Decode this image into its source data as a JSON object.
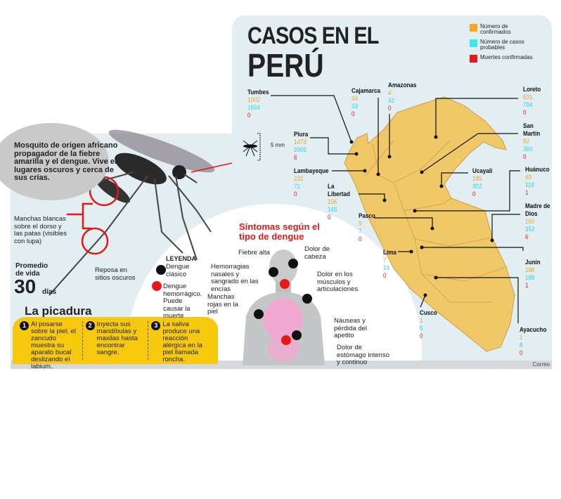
{
  "title": {
    "line1": "CASOS EN EL",
    "line2": "PERÚ"
  },
  "legend": [
    {
      "label": "Número de confirmados",
      "color": "#f5a623"
    },
    {
      "label": "Número de casos probables",
      "color": "#3ee8f0"
    },
    {
      "label": "Muertes confirmadas",
      "color": "#e81818"
    }
  ],
  "regions": [
    {
      "name": "Tumbes",
      "confirmed": "1002",
      "probable": "1504",
      "deaths": "0"
    },
    {
      "name": "Cajamarca",
      "confirmed": "34",
      "probable": "33",
      "deaths": "0"
    },
    {
      "name": "Amazonas",
      "confirmed": "4",
      "probable": "42",
      "deaths": "0"
    },
    {
      "name": "Loreto",
      "confirmed": "631",
      "probable": "794",
      "deaths": "0"
    },
    {
      "name": "Piura",
      "confirmed": "1473",
      "probable": "2006",
      "deaths": "6"
    },
    {
      "name": "San Martín",
      "confirmed": "82",
      "probable": "360",
      "deaths": "0"
    },
    {
      "name": "Ucayali",
      "confirmed": "185",
      "probable": "302",
      "deaths": "0"
    },
    {
      "name": "Huánuco",
      "confirmed": "49",
      "probable": "118",
      "deaths": "1"
    },
    {
      "name": "Lambayeque",
      "confirmed": "232",
      "probable": "71",
      "deaths": "0"
    },
    {
      "name": "La Libertad",
      "confirmed": "106",
      "probable": "145",
      "deaths": "0"
    },
    {
      "name": "Madre de Dios",
      "confirmed": "166",
      "probable": "352",
      "deaths": "6"
    },
    {
      "name": "Pasco",
      "confirmed": "9",
      "probable": "7",
      "deaths": "0"
    },
    {
      "name": "Lima",
      "confirmed": "7",
      "probable": "14",
      "deaths": "0"
    },
    {
      "name": "Junín",
      "confirmed": "188",
      "probable": "188",
      "deaths": "1"
    },
    {
      "name": "Cusco",
      "confirmed": "1",
      "probable": "6",
      "deaths": "0"
    },
    {
      "name": "Ayacucho",
      "confirmed": "1",
      "probable": "8",
      "deaths": "0"
    }
  ],
  "mosquito": {
    "description": "Mosquito de origen africano propagador de la fiebre amarilla y el dengue. Vive en lugares oscuros y cerca de sus crías.",
    "spots": "Manchas blancas sobre el dorso y las patas (visibles con lupa)",
    "rest": "Reposa en sitios oscuros",
    "size": "5 mm",
    "life_label": "Promedio de vida",
    "life_value": "30",
    "life_unit": "días"
  },
  "bite": {
    "title": "La picadura",
    "steps": [
      {
        "num": "1",
        "text": "Al posarse sobre la piel, el zancudo muestra su aparato bucal deslizando el labium."
      },
      {
        "num": "2",
        "text": "Inyecta sus mandíbulas y maxilas hasta encontrar sangre."
      },
      {
        "num": "3",
        "text": "La saliva produce una reacción alérgica en la piel llamada roncha."
      }
    ]
  },
  "symptoms": {
    "title": "Síntomas según el tipo de dengue",
    "legend_title": "LEYENDA",
    "legend_classic": "Dengue clásico",
    "legend_hemorrhagic": "Dengue hemorrágico. Puede causar la muerte",
    "classic_color": "#111111",
    "hemorrhagic_color": "#e81818",
    "items": [
      "Fiebre alta",
      "Dolor de cabeza",
      "Hemorragias nasales y sangrado en las encías",
      "Dolor en los músculos y articulaciones",
      "Manchas rojas en la piel",
      "Náuseas y pérdida del apetito",
      "Dolor de estómago intenso y continuo"
    ]
  },
  "credit": "Correo"
}
